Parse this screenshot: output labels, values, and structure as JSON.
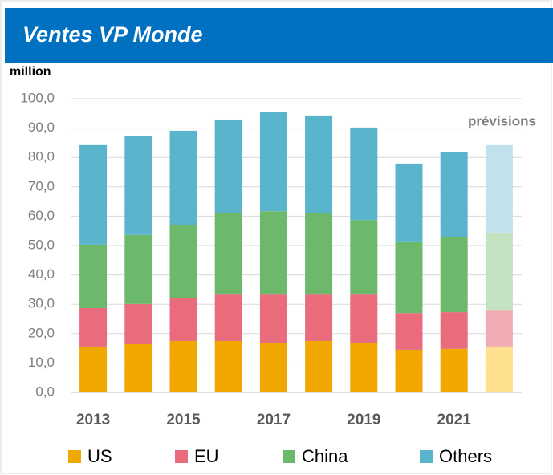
{
  "chart_data": {
    "type": "stacked_bar",
    "title": "Ventes VP Monde",
    "y_label": "million",
    "annotation": "prévisions",
    "categories": [
      "2013",
      null,
      "2015",
      null,
      "2017",
      null,
      "2019",
      null,
      "2021",
      null
    ],
    "series": [
      {
        "name": "US",
        "color": "#f0a800",
        "forecast_color": "#ffe08f",
        "values": [
          15.6,
          16.4,
          17.5,
          17.5,
          16.9,
          17.5,
          16.9,
          14.5,
          14.8,
          15.6
        ]
      },
      {
        "name": "EU",
        "color": "#e86c7c",
        "forecast_color": "#f2aab3",
        "values": [
          13.1,
          13.7,
          14.7,
          15.8,
          16.4,
          15.8,
          16.4,
          12.5,
          12.5,
          12.5
        ]
      },
      {
        "name": "China",
        "color": "#6db96b",
        "forecast_color": "#c5e3c2",
        "values": [
          21.6,
          23.5,
          24.9,
          27.9,
          28.4,
          27.9,
          25.4,
          24.4,
          25.7,
          26.3
        ]
      },
      {
        "name": "Others",
        "color": "#5ab4cc",
        "forecast_color": "#c1e2ec",
        "values": [
          33.9,
          33.8,
          32.0,
          31.7,
          33.7,
          33.1,
          31.5,
          26.5,
          28.7,
          29.8
        ]
      }
    ],
    "ylim": [
      0,
      100
    ],
    "yticks": [
      {
        "value": 0,
        "label": "0,0"
      },
      {
        "value": 10,
        "label": "10,0"
      },
      {
        "value": 20,
        "label": "20,0"
      },
      {
        "value": 30,
        "label": "30,0"
      },
      {
        "value": 40,
        "label": "40,0"
      },
      {
        "value": 50,
        "label": "50,0"
      },
      {
        "value": 60,
        "label": "60,0"
      },
      {
        "value": 70,
        "label": "70,0"
      },
      {
        "value": 80,
        "label": "80,0"
      },
      {
        "value": 90,
        "label": "90,0"
      },
      {
        "value": 100,
        "label": "100,0"
      }
    ],
    "grid": true,
    "legend": "bottom"
  }
}
